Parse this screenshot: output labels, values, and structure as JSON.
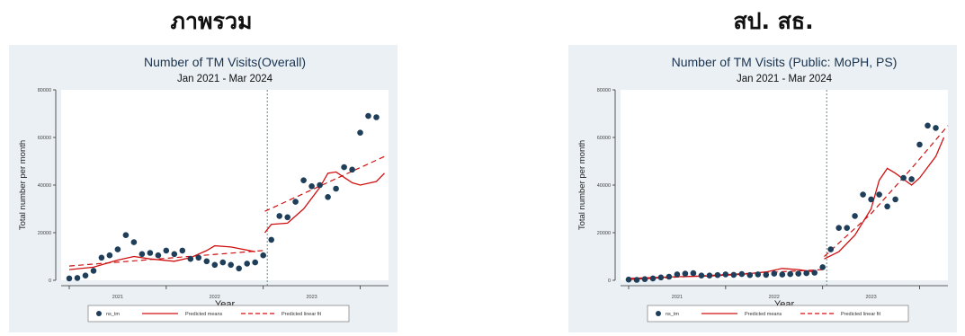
{
  "headings": {
    "left": "ภาพรวม",
    "right": "สป. สธ."
  },
  "colors": {
    "bg": "#eaf0f3",
    "plot": "#ffffff",
    "dot": "#1f3e5a",
    "fit": "#d01010",
    "vline": "#5a7a7a"
  },
  "chart_data": [
    {
      "type": "scatter",
      "title": "Number of TM Visits(Overall)",
      "subtitle": "Jan 2021 - Mar 2024",
      "xlabel": "Year",
      "ylabel": "Total number per month",
      "yticks": [
        "0",
        "20000",
        "40000",
        "60000",
        "80000"
      ],
      "xticks": [
        {
          "label": "2021",
          "x": 6
        },
        {
          "label": "2022",
          "x": 18
        },
        {
          "label": "2023",
          "x": 30
        }
      ],
      "ylim": [
        0,
        80000
      ],
      "xlim": [
        -1,
        39.5
      ],
      "intervention_x": 24.5,
      "legend": [
        "ns_tm",
        "Predicted means",
        "Predicted linear fit"
      ],
      "x": [
        0,
        1,
        2,
        3,
        4,
        5,
        6,
        7,
        8,
        9,
        10,
        11,
        12,
        13,
        14,
        15,
        16,
        17,
        18,
        19,
        20,
        21,
        22,
        23,
        24,
        25,
        26,
        27,
        28,
        29,
        30,
        31,
        32,
        33,
        34,
        35,
        36,
        37,
        38
      ],
      "y": [
        800,
        1000,
        2000,
        4000,
        9500,
        10500,
        13000,
        19000,
        16000,
        11000,
        11500,
        10500,
        12500,
        11000,
        12500,
        9000,
        9500,
        8000,
        6500,
        7500,
        6500,
        5000,
        7000,
        7500,
        10500,
        17000,
        27000,
        26500,
        33000,
        42000,
        39500,
        40000,
        35000,
        38500,
        47500,
        46500,
        62000,
        69000,
        68500
      ],
      "fit_pre": [
        [
          0,
          4500
        ],
        [
          3,
          5500
        ],
        [
          6,
          8500
        ],
        [
          8,
          10000
        ],
        [
          10,
          9000
        ],
        [
          13,
          8000
        ],
        [
          15,
          9500
        ],
        [
          17,
          12500
        ],
        [
          18,
          14500
        ],
        [
          20,
          14000
        ],
        [
          23,
          12000
        ]
      ],
      "fit_post": [
        [
          24.2,
          20000
        ],
        [
          25,
          23500
        ],
        [
          27,
          24000
        ],
        [
          29,
          30000
        ],
        [
          31,
          39000
        ],
        [
          32,
          45000
        ],
        [
          33,
          45500
        ],
        [
          35,
          41000
        ],
        [
          36,
          40000
        ],
        [
          38,
          41500
        ],
        [
          39,
          45000
        ]
      ],
      "lin_pre": [
        [
          0,
          6000
        ],
        [
          24,
          12500
        ]
      ],
      "lin_post": [
        [
          24.2,
          29000
        ],
        [
          39,
          52000
        ]
      ]
    },
    {
      "type": "scatter",
      "title": "Number of TM Visits (Public: MoPH, PS)",
      "subtitle": "Jan 2021 - Mar 2024",
      "xlabel": "Year",
      "ylabel": "Total number per month",
      "yticks": [
        "0",
        "20000",
        "40000",
        "60000",
        "80000"
      ],
      "xticks": [
        {
          "label": "2021",
          "x": 6
        },
        {
          "label": "2022",
          "x": 18
        },
        {
          "label": "2023",
          "x": 30
        }
      ],
      "ylim": [
        0,
        80000
      ],
      "xlim": [
        -1,
        39.5
      ],
      "intervention_x": 24.5,
      "legend": [
        "ns_tm",
        "Predicted means",
        "Predicted linear fit"
      ],
      "x": [
        0,
        1,
        2,
        3,
        4,
        5,
        6,
        7,
        8,
        9,
        10,
        11,
        12,
        13,
        14,
        15,
        16,
        17,
        18,
        19,
        20,
        21,
        22,
        23,
        24,
        25,
        26,
        27,
        28,
        29,
        30,
        31,
        32,
        33,
        34,
        35,
        36,
        37,
        38
      ],
      "y": [
        300,
        200,
        500,
        800,
        1200,
        1500,
        2500,
        2800,
        3000,
        2000,
        2000,
        2200,
        2500,
        2300,
        2600,
        2200,
        2500,
        2300,
        2800,
        2400,
        2600,
        2800,
        3000,
        3200,
        5500,
        13000,
        22000,
        22000,
        27000,
        36000,
        34000,
        36000,
        31000,
        34000,
        43000,
        42500,
        57000,
        65000,
        64000
      ],
      "fit_pre": [
        [
          0,
          800
        ],
        [
          6,
          1500
        ],
        [
          10,
          1800
        ],
        [
          14,
          2500
        ],
        [
          17,
          3500
        ],
        [
          19,
          5000
        ],
        [
          21,
          4500
        ],
        [
          23,
          3500
        ]
      ],
      "fit_post": [
        [
          24.2,
          9000
        ],
        [
          26,
          12000
        ],
        [
          28,
          19000
        ],
        [
          30,
          30000
        ],
        [
          31,
          42000
        ],
        [
          32,
          47000
        ],
        [
          33,
          45000
        ],
        [
          35,
          40000
        ],
        [
          36,
          43000
        ],
        [
          38,
          52000
        ],
        [
          39,
          60000
        ]
      ],
      "lin_pre": [
        [
          0,
          300
        ],
        [
          24,
          4500
        ]
      ],
      "lin_post": [
        [
          24.2,
          10000
        ],
        [
          30,
          28000
        ],
        [
          35,
          47000
        ],
        [
          39.5,
          65000
        ]
      ]
    }
  ]
}
